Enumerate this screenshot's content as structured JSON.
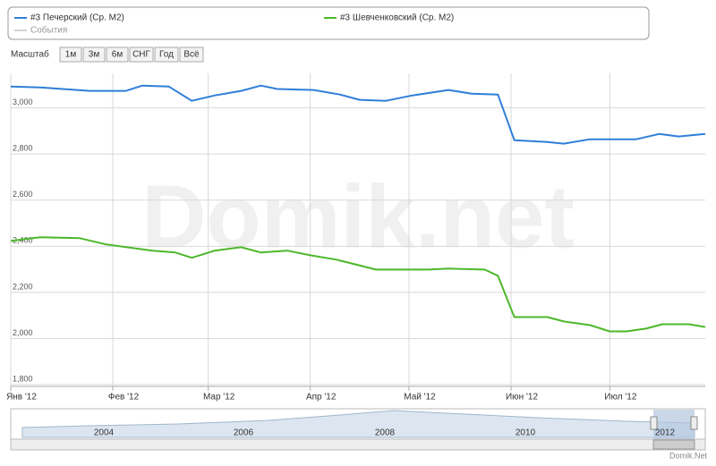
{
  "legend": {
    "items": [
      "#3 Печерский (Ср. М2)",
      "#3 Шевченковский (Ср. М2)",
      "События"
    ]
  },
  "zoom": {
    "label": "Масштаб",
    "buttons": [
      "1м",
      "3м",
      "6м",
      "СНГ",
      "Год",
      "Всё"
    ]
  },
  "watermark": "Domik.net",
  "credit": "Domik.Net",
  "navigator": {
    "labels": [
      "2004",
      "2006",
      "2008",
      "2010",
      "2012"
    ]
  },
  "chart_data": {
    "type": "line",
    "xlim": [
      0,
      211
    ],
    "ylim": [
      1800,
      3150
    ],
    "xticks": [
      {
        "value": 0,
        "label": "Янв '12"
      },
      {
        "value": 31,
        "label": "Фев '12"
      },
      {
        "value": 60,
        "label": "Мар '12"
      },
      {
        "value": 91,
        "label": "Апр '12"
      },
      {
        "value": 121,
        "label": "Май '12"
      },
      {
        "value": 152,
        "label": "Июн '12"
      },
      {
        "value": 182,
        "label": "Июл '12"
      }
    ],
    "yticks": [
      {
        "value": 1800,
        "label": "1,800"
      },
      {
        "value": 2000,
        "label": "2,000"
      },
      {
        "value": 2200,
        "label": "2,200"
      },
      {
        "value": 2400,
        "label": "2,400"
      },
      {
        "value": 2600,
        "label": "2,600"
      },
      {
        "value": 2800,
        "label": "2,800"
      },
      {
        "value": 3000,
        "label": "3,000"
      }
    ],
    "grid": true,
    "series": [
      {
        "name": "#3 Печерский (Ср. М2)",
        "color": "#2f7ed8",
        "x": [
          0,
          9,
          24,
          35,
          40,
          48,
          55,
          62,
          70,
          76,
          81,
          92,
          100,
          106,
          114,
          122,
          133,
          140,
          148,
          153,
          163,
          168,
          176,
          190,
          197,
          203,
          211
        ],
        "values": [
          3093,
          3089,
          3074,
          3074,
          3097,
          3093,
          3031,
          3054,
          3074,
          3097,
          3082,
          3078,
          3058,
          3035,
          3031,
          3054,
          3078,
          3062,
          3058,
          2860,
          2852,
          2845,
          2864,
          2864,
          2887,
          2876,
          2887
        ]
      },
      {
        "name": "#3 Шевченковский (Ср. М2)",
        "color": "#4cb82a",
        "x": [
          0,
          9,
          21,
          29,
          43,
          50,
          55,
          62,
          70,
          76,
          84,
          91,
          99,
          111,
          127,
          133,
          144,
          148,
          153,
          163,
          168,
          176,
          182,
          187,
          193,
          198,
          206,
          211
        ],
        "values": [
          2423,
          2439,
          2435,
          2408,
          2381,
          2373,
          2350,
          2381,
          2396,
          2373,
          2381,
          2361,
          2342,
          2299,
          2299,
          2303,
          2299,
          2272,
          2093,
          2093,
          2074,
          2058,
          2031,
          2031,
          2043,
          2062,
          2062,
          2050
        ]
      }
    ]
  }
}
